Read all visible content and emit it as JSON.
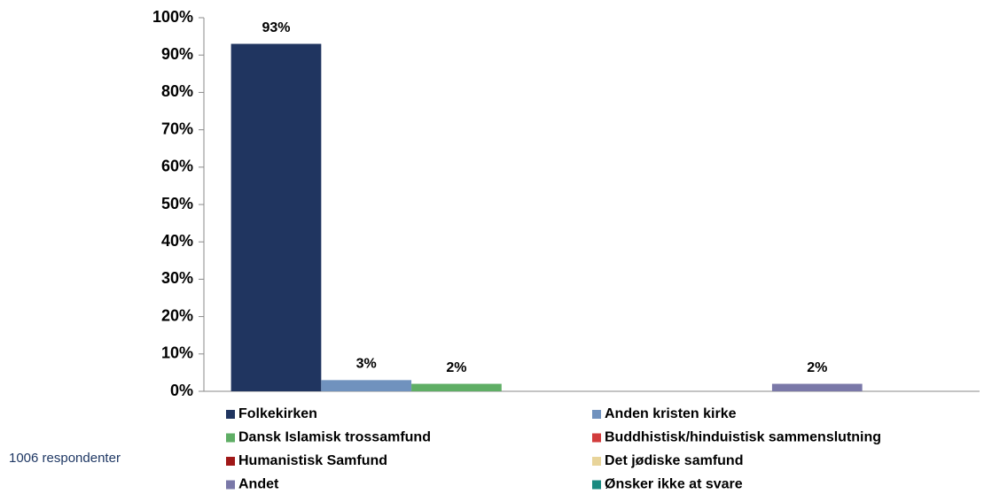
{
  "chart_data": {
    "type": "bar",
    "annotation": "1006 respondenter",
    "categories": [
      null
    ],
    "series": [
      {
        "name": "Folkekirken",
        "color": "#203560",
        "values": [
          93
        ],
        "value_labels": [
          "93%"
        ]
      },
      {
        "name": "Anden kristen kirke",
        "color": "#7092be",
        "values": [
          3
        ],
        "value_labels": [
          "3%"
        ]
      },
      {
        "name": "Dansk Islamisk trossamfund",
        "color": "#5fae65",
        "values": [
          2
        ],
        "value_labels": [
          "2%"
        ]
      },
      {
        "name": "Buddhistisk/hinduistisk sammenslutning",
        "color": "#d23c3c",
        "values": [
          0
        ]
      },
      {
        "name": "Humanistisk Samfund",
        "color": "#a01818",
        "values": [
          0
        ]
      },
      {
        "name": "Det jødiske samfund",
        "color": "#e8d49a",
        "values": [
          0
        ]
      },
      {
        "name": "Andet",
        "color": "#7a78a8",
        "values": [
          2
        ],
        "value_labels": [
          "2%"
        ]
      },
      {
        "name": "Ønsker ikke at svare",
        "color": "#1a8a80",
        "values": [
          0
        ]
      }
    ],
    "ylim": [
      0,
      100
    ],
    "yticks": [
      {
        "value": 0,
        "label": "0%"
      },
      {
        "value": 10,
        "label": "10%"
      },
      {
        "value": 20,
        "label": "20%"
      },
      {
        "value": 30,
        "label": "30%"
      },
      {
        "value": 40,
        "label": "40%"
      },
      {
        "value": 50,
        "label": "50%"
      },
      {
        "value": 60,
        "label": "60%"
      },
      {
        "value": 70,
        "label": "70%"
      },
      {
        "value": 80,
        "label": "80%"
      },
      {
        "value": 90,
        "label": "90%"
      },
      {
        "value": 100,
        "label": "100%"
      }
    ],
    "legend": "bottom"
  }
}
